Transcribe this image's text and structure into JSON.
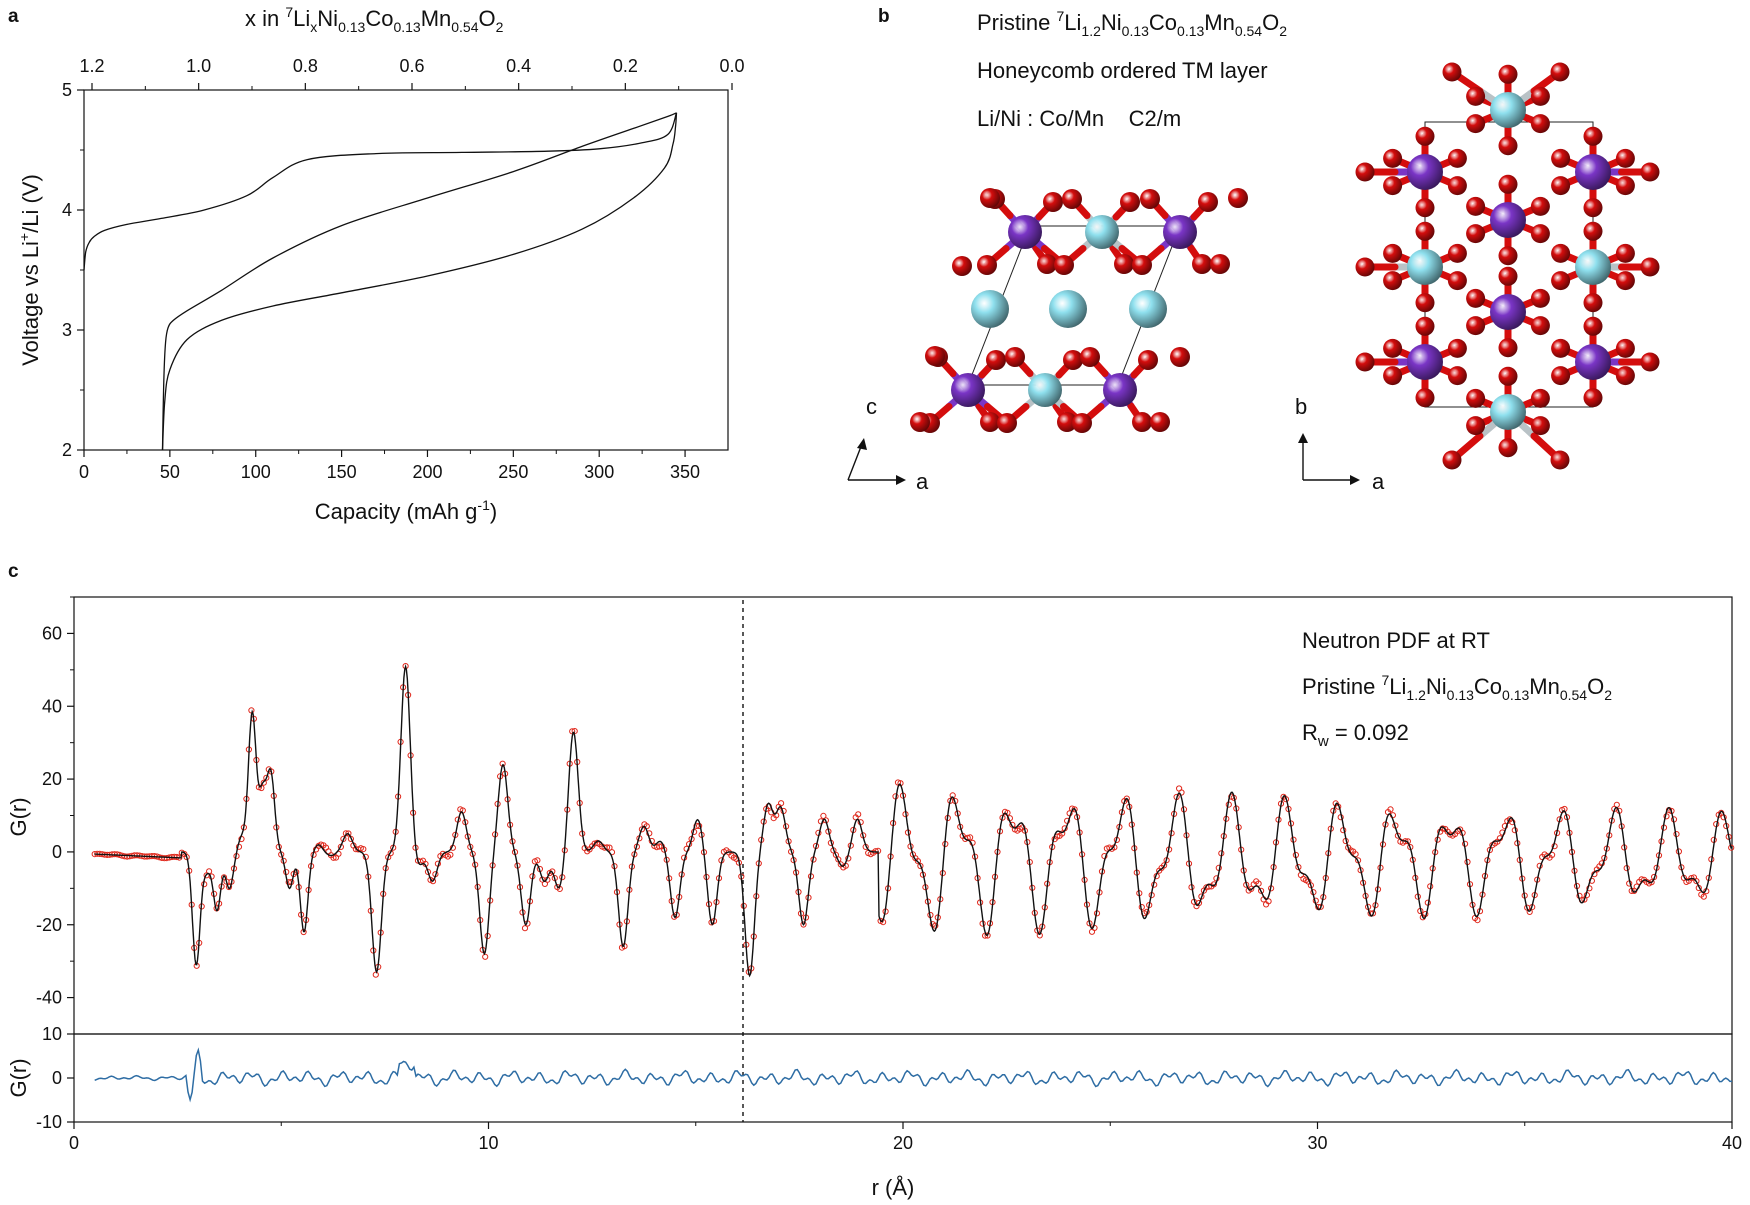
{
  "panels": {
    "a": {
      "letter": "a",
      "top_axis_label_pre": "x in ",
      "top_axis_label_sup": "7",
      "top_axis_label_mid1": "Li",
      "top_axis_label_sub_x": "x",
      "top_axis_label_ni": "Ni",
      "top_axis_label_sub1": "0.13",
      "top_axis_label_co": "Co",
      "top_axis_label_sub2": "0.13",
      "top_axis_label_mn": "Mn",
      "top_axis_label_sub3": "0.54",
      "top_axis_label_o": "O",
      "top_axis_label_sub4": "2",
      "xlabel_pre": "Capacity (mAh g",
      "xlabel_sup": "-1",
      "xlabel_post": ")",
      "ylabel_pre": "Voltage vs Li",
      "ylabel_sup": "+",
      "ylabel_post": "/Li (V)",
      "xticks": [
        "0",
        "50",
        "100",
        "150",
        "200",
        "250",
        "300",
        "350"
      ],
      "yticks": [
        "2",
        "3",
        "4",
        "5"
      ],
      "top_ticks": [
        "1.2",
        "1.0",
        "0.8",
        "0.6",
        "0.4",
        "0.2",
        "0.0"
      ]
    },
    "b": {
      "letter": "b",
      "line1_pre": "Pristine ",
      "line1_sup": "7",
      "line1_li": "Li",
      "line1_s1": "1.2",
      "line1_ni": "Ni",
      "line1_s2": "0.13",
      "line1_co": "Co",
      "line1_s3": "0.13",
      "line1_mn": "Mn",
      "line1_s4": "0.54",
      "line1_o": "O",
      "line1_s5": "2",
      "line2": "Honeycomb ordered TM layer",
      "line3": "Li/Ni : Co/Mn    C2/m",
      "axis_c": "c",
      "axis_a1": "a",
      "axis_b": "b",
      "axis_a2": "a"
    },
    "c": {
      "letter": "c",
      "info1": "Neutron PDF at RT",
      "info2_pre": "Pristine ",
      "info2_sup": "7",
      "info2_li": "Li",
      "info2_s1": "1.2",
      "info2_ni": "Ni",
      "info2_s2": "0.13",
      "info2_co": "Co",
      "info2_s3": "0.13",
      "info2_mn": "Mn",
      "info2_s4": "0.54",
      "info2_o": "O",
      "info2_s5": "2",
      "info3_pre": "R",
      "info3_sub": "w",
      "info3_post": " = 0.092",
      "ylabel": "G(r)",
      "ylabel_diff": "G(r)",
      "xlabel": "r (Å)",
      "yticks": [
        "60",
        "40",
        "20",
        "0",
        "-20",
        "-40"
      ],
      "diff_yticks": [
        "10",
        "0",
        "-10"
      ],
      "xticks": [
        "0",
        "10",
        "20",
        "30",
        "40"
      ]
    }
  },
  "colors": {
    "curve": "#111111",
    "observed": "#e0281c",
    "difference": "#2e6da4",
    "oxygen": "#d40d0d",
    "tm_purple": "#7a35c6",
    "li_cyan": "#8fe0ee",
    "grey": "#b9c2c6"
  },
  "chart_data": [
    {
      "type": "line",
      "ylim": [
        2,
        5
      ],
      "xlim": [
        0,
        375
      ],
      "secondary_xlim": [
        1.2,
        0.0
      ],
      "series": [
        {
          "x": [
            0,
            1,
            3,
            6,
            12,
            25,
            45,
            70,
            95,
            110,
            130,
            170,
            220,
            270,
            300,
            325,
            340,
            345
          ],
          "y": [
            3.5,
            3.65,
            3.73,
            3.78,
            3.83,
            3.88,
            3.93,
            4.0,
            4.12,
            4.27,
            4.42,
            4.47,
            4.48,
            4.49,
            4.51,
            4.56,
            4.63,
            4.81
          ]
        },
        {
          "x": [
            345,
            340,
            320,
            290,
            250,
            200,
            150,
            110,
            80,
            60,
            52,
            49,
            47.5,
            46.5,
            45.7
          ],
          "y": [
            4.81,
            4.78,
            4.68,
            4.53,
            4.32,
            4.1,
            3.87,
            3.6,
            3.33,
            3.16,
            3.08,
            3.02,
            2.9,
            2.6,
            2.0
          ]
        },
        {
          "x": [
            45.7,
            47,
            50,
            60,
            80,
            110,
            150,
            200,
            250,
            290,
            320,
            338,
            343,
            344.5,
            345
          ],
          "y": [
            2.0,
            2.4,
            2.67,
            2.92,
            3.08,
            3.2,
            3.31,
            3.45,
            3.63,
            3.84,
            4.1,
            4.35,
            4.55,
            4.7,
            4.81
          ]
        }
      ]
    },
    {
      "type": "line",
      "xlim": [
        0,
        40
      ],
      "ylim": [
        -50,
        70
      ],
      "diff_ylim": [
        -10,
        10
      ],
      "peaks": [
        {
          "r": 2.95,
          "g": -31
        },
        {
          "r": 3.2,
          "g": -5
        },
        {
          "r": 3.45,
          "g": -16
        },
        {
          "r": 3.75,
          "g": -10
        },
        {
          "r": 4.05,
          "g": 4
        },
        {
          "r": 4.3,
          "g": 38
        },
        {
          "r": 4.55,
          "g": 16
        },
        {
          "r": 4.75,
          "g": 21
        },
        {
          "r": 5.2,
          "g": -10
        },
        {
          "r": 5.55,
          "g": -22
        },
        {
          "r": 5.9,
          "g": 2
        },
        {
          "r": 6.2,
          "g": -1
        },
        {
          "r": 6.6,
          "g": 5
        },
        {
          "r": 7.3,
          "g": -33
        },
        {
          "r": 8.0,
          "g": 51
        },
        {
          "r": 8.3,
          "g": -4
        },
        {
          "r": 8.65,
          "g": -8
        },
        {
          "r": 9.35,
          "g": 11
        },
        {
          "r": 9.9,
          "g": -28
        },
        {
          "r": 10.35,
          "g": 24
        },
        {
          "r": 10.9,
          "g": -20
        },
        {
          "r": 11.35,
          "g": -8
        },
        {
          "r": 11.7,
          "g": -10
        },
        {
          "r": 12.05,
          "g": 33
        },
        {
          "r": 12.65,
          "g": 3
        },
        {
          "r": 13.25,
          "g": -26
        },
        {
          "r": 13.75,
          "g": 7
        },
        {
          "r": 14.15,
          "g": 3
        },
        {
          "r": 14.5,
          "g": -18
        },
        {
          "r": 15.05,
          "g": 9
        },
        {
          "r": 15.4,
          "g": -20
        },
        {
          "r": 15.9,
          "g": 0
        },
        {
          "r": 16.3,
          "g": -34
        },
        {
          "r": 16.75,
          "g": 13
        },
        {
          "r": 17.05,
          "g": 12
        },
        {
          "r": 17.6,
          "g": -20
        },
        {
          "r": 18.1,
          "g": 9
        },
        {
          "r": 18.55,
          "g": -4
        },
        {
          "r": 18.9,
          "g": 9
        },
        {
          "r": 19.25,
          "g": 0
        }
      ]
    }
  ]
}
